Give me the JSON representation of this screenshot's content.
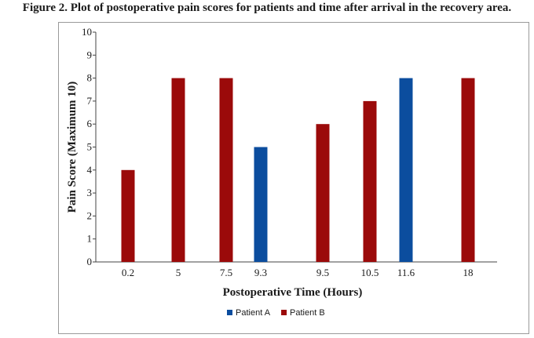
{
  "caption": "Figure 2. Plot of postoperative pain scores for patients and time after arrival in the recovery area.",
  "chart_data": {
    "type": "bar",
    "categories": [
      "0.2",
      "5",
      "7.5",
      "9.3",
      "9.5",
      "10.5",
      "11.6",
      "18"
    ],
    "bars": [
      {
        "category": "0.2",
        "series": "Patient B",
        "value": 4
      },
      {
        "category": "5",
        "series": "Patient B",
        "value": 8
      },
      {
        "category": "7.5",
        "series": "Patient B",
        "value": 8
      },
      {
        "category": "9.3",
        "series": "Patient A",
        "value": 5
      },
      {
        "category": "9.5",
        "series": "Patient B",
        "value": 6
      },
      {
        "category": "10.5",
        "series": "Patient B",
        "value": 7
      },
      {
        "category": "11.6",
        "series": "Patient A",
        "value": 8
      },
      {
        "category": "18",
        "series": "Patient B",
        "value": 8
      }
    ],
    "series": [
      {
        "name": "Patient A",
        "color": "#0b4d9e"
      },
      {
        "name": "Patient B",
        "color": "#9b0a0a"
      }
    ],
    "xlabel": "Postoperative Time (Hours)",
    "ylabel": "Pain Score (Maximum 10)",
    "ylim": [
      0,
      10
    ],
    "yticks": [
      0,
      1,
      2,
      3,
      4,
      5,
      6,
      7,
      8,
      9,
      10
    ],
    "grid": false,
    "legend": "bottom-center"
  }
}
